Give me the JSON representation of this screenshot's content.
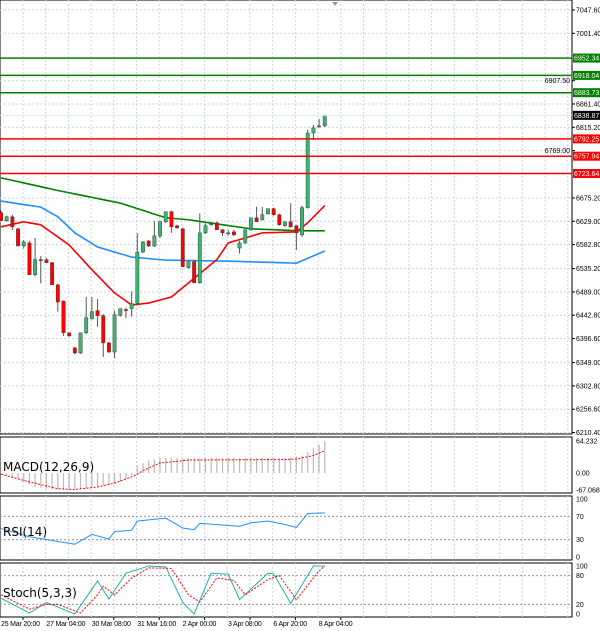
{
  "chart_data": {
    "type": "candlestick",
    "price_axis": {
      "ticks": [
        "7047.60",
        "7001.40",
        "6907.50",
        "6861.40",
        "6815.20",
        "6769.00",
        "6675.20",
        "6629.00",
        "6582.80",
        "6535.20",
        "6489.00",
        "6442.80",
        "6396.60",
        "6349.00",
        "6302.80",
        "6256.60",
        "6210.40"
      ],
      "range": [
        6210.4,
        7047.6
      ]
    },
    "time_labels": [
      "25 Mar 20:00",
      "27 Mar 04:00",
      "30 Mar 08:00",
      "31 Mar 16:00",
      "2 Apr 00:00",
      "3 Apr 08:00",
      "6 Apr 20:00",
      "8 Apr 04:00"
    ],
    "candles_ohlc": [
      [
        6646,
        6650,
        6630,
        6630
      ],
      [
        6630,
        6640,
        6628,
        6638
      ],
      [
        6638,
        6642,
        6612,
        6618
      ],
      [
        6614,
        6616,
        6580,
        6580
      ],
      [
        6580,
        6592,
        6575,
        6588
      ],
      [
        6586,
        6590,
        6523,
        6523
      ],
      [
        6523,
        6596,
        6520,
        6553
      ],
      [
        6553,
        6560,
        6506,
        6552
      ],
      [
        6553,
        6556,
        6546,
        6547
      ],
      [
        6547,
        6548,
        6503,
        6503
      ],
      [
        6503,
        6505,
        6450,
        6469
      ],
      [
        6471,
        6472,
        6402,
        6408
      ],
      [
        6408,
        6408,
        6400,
        6402
      ],
      [
        6378,
        6380,
        6365,
        6368
      ],
      [
        6368,
        6408,
        6366,
        6408
      ],
      [
        6408,
        6479,
        6405,
        6438
      ],
      [
        6436,
        6479,
        6434,
        6450
      ],
      [
        6452,
        6475,
        6420,
        6442
      ],
      [
        6442,
        6445,
        6360,
        6388
      ],
      [
        6388,
        6390,
        6368,
        6370
      ],
      [
        6370,
        6452,
        6358,
        6444
      ],
      [
        6442,
        6456,
        6440,
        6456
      ],
      [
        6454,
        6458,
        6437,
        6453
      ],
      [
        6456,
        6490,
        6440,
        6466
      ],
      [
        6466,
        6605,
        6464,
        6568
      ],
      [
        6568,
        6590,
        6566,
        6588
      ],
      [
        6590,
        6592,
        6578,
        6580
      ],
      [
        6580,
        6630,
        6578,
        6600
      ],
      [
        6600,
        6630,
        6596,
        6628
      ],
      [
        6628,
        6648,
        6626,
        6648
      ],
      [
        6648,
        6650,
        6606,
        6618
      ],
      [
        6620,
        6622,
        6614,
        6616
      ],
      [
        6614,
        6616,
        6538,
        6539
      ],
      [
        6537,
        6550,
        6535,
        6549
      ],
      [
        6549,
        6552,
        6507,
        6507
      ],
      [
        6507,
        6645,
        6505,
        6606
      ],
      [
        6606,
        6625,
        6604,
        6620
      ],
      [
        6624,
        6628,
        6620,
        6624
      ],
      [
        6626,
        6628,
        6612,
        6612
      ],
      [
        6612,
        6614,
        6600,
        6606
      ],
      [
        6606,
        6612,
        6600,
        6606
      ],
      [
        6608,
        6612,
        6600,
        6602
      ],
      [
        6576,
        6590,
        6565,
        6586
      ],
      [
        6586,
        6614,
        6584,
        6612
      ],
      [
        6612,
        6636,
        6610,
        6636
      ],
      [
        6636,
        6658,
        6628,
        6628
      ],
      [
        6632,
        6657,
        6630,
        6642
      ],
      [
        6644,
        6652,
        6642,
        6654
      ],
      [
        6654,
        6656,
        6640,
        6642
      ],
      [
        6642,
        6644,
        6620,
        6622
      ],
      [
        6620,
        6628,
        6618,
        6628
      ],
      [
        6628,
        6665,
        6616,
        6618
      ],
      [
        6620,
        6622,
        6572,
        6606
      ],
      [
        6602,
        6660,
        6598,
        6656
      ],
      [
        6656,
        6810,
        6654,
        6804
      ],
      [
        6804,
        6820,
        6790,
        6814
      ],
      [
        6816,
        6832,
        6814,
        6818
      ],
      [
        6818,
        6840,
        6816,
        6838
      ]
    ],
    "moving_averages": [
      {
        "name": "ma-slow",
        "color": "#008000",
        "points": [
          [
            0,
            6715
          ],
          [
            10,
            6690
          ],
          [
            21,
            6665
          ],
          [
            29,
            6636
          ],
          [
            33,
            6632
          ],
          [
            44,
            6614
          ],
          [
            53,
            6610
          ],
          [
            57,
            6610
          ]
        ]
      },
      {
        "name": "ma-mid",
        "color": "#1e90ff",
        "points": [
          [
            0,
            6669
          ],
          [
            7,
            6657
          ],
          [
            10,
            6638
          ],
          [
            13,
            6606
          ],
          [
            17,
            6578
          ],
          [
            23,
            6558
          ],
          [
            29,
            6552
          ],
          [
            40,
            6550
          ],
          [
            52,
            6546
          ],
          [
            57,
            6570
          ]
        ]
      },
      {
        "name": "ma-fast",
        "color": "#ff0000",
        "points": [
          [
            0,
            6618
          ],
          [
            4,
            6628
          ],
          [
            7,
            6622
          ],
          [
            12,
            6582
          ],
          [
            16,
            6533
          ],
          [
            20,
            6487
          ],
          [
            23,
            6463
          ],
          [
            26,
            6467
          ],
          [
            30,
            6479
          ],
          [
            38,
            6553
          ],
          [
            40,
            6586
          ],
          [
            46,
            6606
          ],
          [
            52,
            6608
          ],
          [
            54,
            6626
          ],
          [
            57,
            6660
          ]
        ]
      }
    ],
    "levels": [
      {
        "value": "6952.34",
        "price": 6952.34,
        "type": "resistance",
        "color": "#008000"
      },
      {
        "value": "6918.04",
        "price": 6918.04,
        "type": "resistance",
        "color": "#008000"
      },
      {
        "value": "6883.73",
        "price": 6883.73,
        "type": "resistance",
        "color": "#008000"
      },
      {
        "value": "6792.25",
        "price": 6792.25,
        "type": "support",
        "color": "#ff0000"
      },
      {
        "value": "6757.94",
        "price": 6757.94,
        "type": "support",
        "color": "#ff0000"
      },
      {
        "value": "6723.64",
        "price": 6723.64,
        "type": "support",
        "color": "#ff0000"
      }
    ],
    "current_price": {
      "value": "6838.87",
      "price": 6838.87
    },
    "macd": {
      "label": "MACD(12,26,9)",
      "ticks": [
        "64.232",
        "0.00",
        "-67.068"
      ],
      "range": [
        -67.068,
        64.232
      ],
      "histogram": [
        [
          0,
          -5
        ],
        [
          3,
          -25
        ],
        [
          6,
          -55
        ],
        [
          9,
          -65
        ],
        [
          12,
          -65
        ],
        [
          15,
          -60
        ],
        [
          19,
          -45
        ],
        [
          21,
          -35
        ],
        [
          23,
          -10
        ],
        [
          24,
          15
        ],
        [
          26,
          25
        ],
        [
          28,
          30
        ],
        [
          35,
          30
        ],
        [
          50,
          30
        ],
        [
          53,
          35
        ],
        [
          55,
          50
        ],
        [
          57,
          64
        ]
      ],
      "signal": [
        [
          0,
          -5
        ],
        [
          5,
          -35
        ],
        [
          10,
          -62
        ],
        [
          13,
          -65
        ],
        [
          17,
          -55
        ],
        [
          20,
          -40
        ],
        [
          23,
          -15
        ],
        [
          25,
          5
        ],
        [
          28,
          20
        ],
        [
          33,
          26
        ],
        [
          50,
          27
        ],
        [
          52,
          28
        ],
        [
          55,
          35
        ],
        [
          57,
          45
        ]
      ]
    },
    "rsi": {
      "label": "RSI(14)",
      "ticks": [
        "100",
        "70",
        "30",
        "0"
      ],
      "levels": [
        70,
        30
      ],
      "line": [
        [
          0,
          49
        ],
        [
          5,
          35
        ],
        [
          13,
          22
        ],
        [
          16,
          39
        ],
        [
          19,
          31
        ],
        [
          20,
          44
        ],
        [
          23,
          46
        ],
        [
          24,
          62
        ],
        [
          29,
          67
        ],
        [
          32,
          50
        ],
        [
          34,
          47
        ],
        [
          35,
          58
        ],
        [
          42,
          53
        ],
        [
          44,
          59
        ],
        [
          47,
          62
        ],
        [
          50,
          56
        ],
        [
          52,
          51
        ],
        [
          54,
          75
        ],
        [
          57,
          76
        ]
      ]
    },
    "stoch": {
      "label": "Stoch(5,3,3)",
      "ticks": [
        "100",
        "80",
        "20",
        "0"
      ],
      "levels": [
        80,
        20
      ],
      "main": [
        [
          0,
          33
        ],
        [
          5,
          2
        ],
        [
          8,
          24
        ],
        [
          13,
          0
        ],
        [
          17,
          69
        ],
        [
          19,
          31
        ],
        [
          22,
          85
        ],
        [
          26,
          100
        ],
        [
          29,
          98
        ],
        [
          32,
          24
        ],
        [
          34,
          0
        ],
        [
          37,
          85
        ],
        [
          40,
          83
        ],
        [
          42,
          30
        ],
        [
          47,
          85
        ],
        [
          48,
          84
        ],
        [
          51,
          22
        ],
        [
          55,
          100
        ],
        [
          57,
          100
        ]
      ],
      "signal": [
        [
          0,
          40
        ],
        [
          5,
          10
        ],
        [
          8,
          20
        ],
        [
          10,
          20
        ],
        [
          14,
          2
        ],
        [
          17,
          40
        ],
        [
          18,
          58
        ],
        [
          20,
          40
        ],
        [
          23,
          75
        ],
        [
          26,
          96
        ],
        [
          30,
          95
        ],
        [
          33,
          40
        ],
        [
          35,
          25
        ],
        [
          38,
          75
        ],
        [
          41,
          70
        ],
        [
          43,
          40
        ],
        [
          47,
          72
        ],
        [
          49,
          80
        ],
        [
          52,
          30
        ],
        [
          56,
          90
        ],
        [
          57,
          100
        ]
      ]
    },
    "colors": {
      "bull": "#3cb371",
      "bear": "#ff0000",
      "grid": "#c8d4e8"
    }
  }
}
